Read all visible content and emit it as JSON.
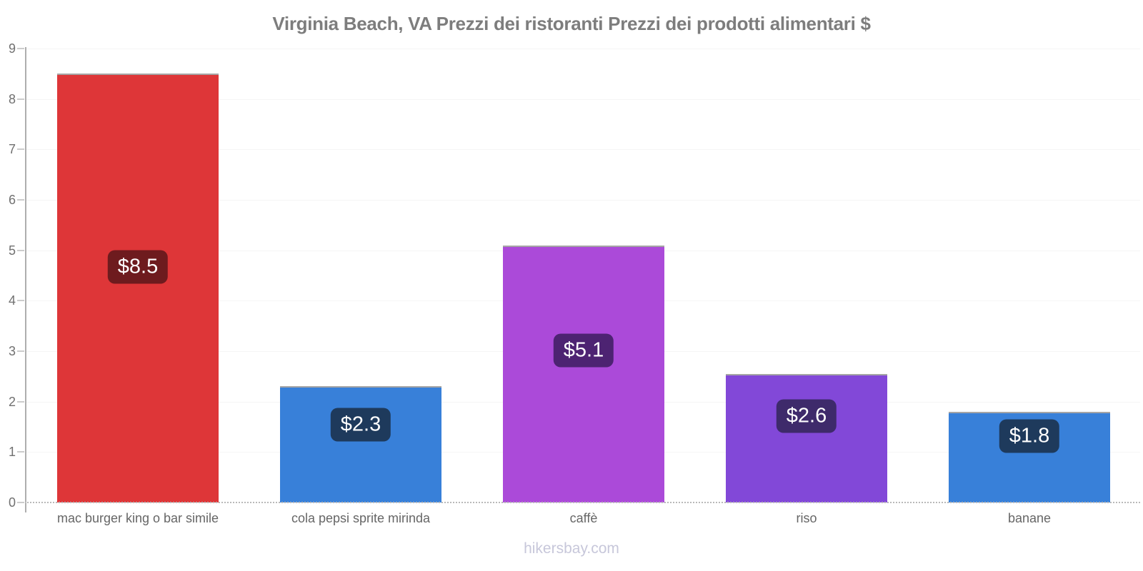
{
  "title": "Virginia Beach, VA Prezzi dei ristoranti Prezzi dei prodotti alimentari $",
  "footer": "hikersbay.com",
  "chart_data": {
    "type": "bar",
    "title": "Virginia Beach, VA Prezzi dei ristoranti Prezzi dei prodotti alimentari $",
    "categories": [
      "mac burger king o bar simile",
      "cola pepsi sprite mirinda",
      "caffè",
      "riso",
      "banane"
    ],
    "values": [
      8.5,
      2.3,
      5.1,
      2.55,
      1.8
    ],
    "data_labels": [
      "$8.5",
      "$2.3",
      "$5.1",
      "$2.6",
      "$1.8"
    ],
    "currency": "$",
    "xlabel": "",
    "ylabel": "",
    "ylim": [
      0,
      9
    ],
    "yticks": [
      0,
      1,
      2,
      3,
      4,
      5,
      6,
      7,
      8,
      9
    ],
    "grid": true,
    "legend": "none",
    "bar_colors": [
      "#de3638",
      "#3880d9",
      "#ab4ad9",
      "#8248d8",
      "#3880d9"
    ],
    "label_bg_colors": [
      "#6e1b1e",
      "#1e3a5c",
      "#4d2372",
      "#3e2a6b",
      "#1e3a5c"
    ],
    "label_text_color": "#ffffff",
    "title_color": "#7d7d7d",
    "axis_text_color": "#707070",
    "watermark_color": "#c7c7da"
  }
}
